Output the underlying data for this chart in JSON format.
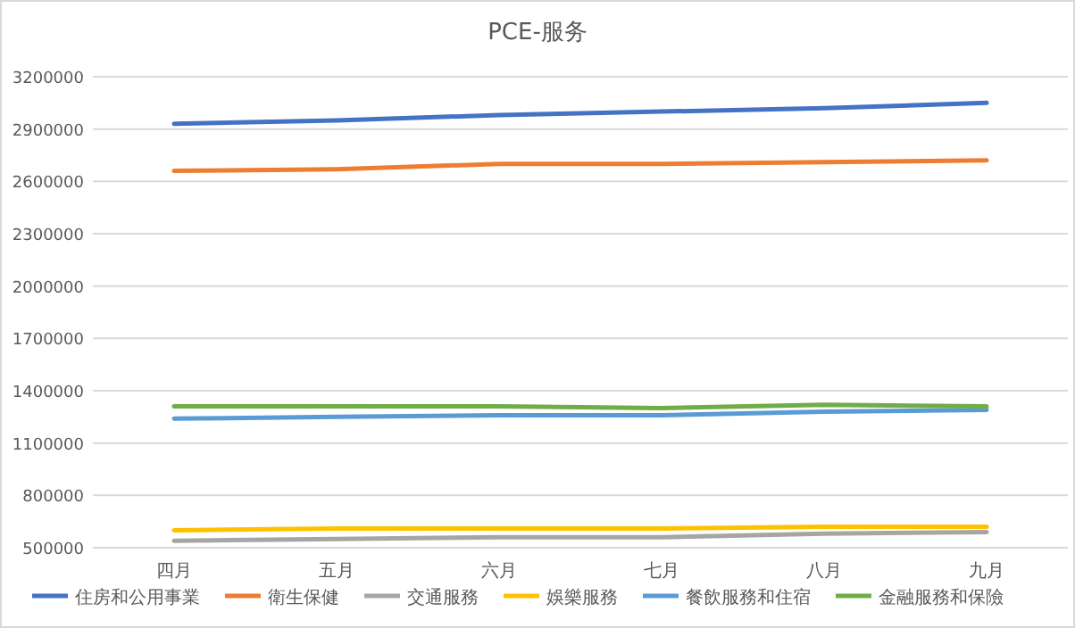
{
  "chart_data": {
    "type": "line",
    "title": "PCE-服务",
    "categories": [
      "四月",
      "五月",
      "六月",
      "七月",
      "八月",
      "九月"
    ],
    "ylim": [
      500000,
      3200000
    ],
    "yticks": [
      500000,
      800000,
      1100000,
      1400000,
      1700000,
      2000000,
      2300000,
      2600000,
      2900000,
      3200000
    ],
    "grid": "y",
    "legend": "bottom",
    "marker": "none",
    "line_style": "solid",
    "series": [
      {
        "name": "住房和公用事業",
        "color": "#4472c4",
        "values": [
          2930000,
          2950000,
          2980000,
          3000000,
          3020000,
          3050000
        ]
      },
      {
        "name": "衛生保健",
        "color": "#ed7d31",
        "values": [
          2660000,
          2670000,
          2700000,
          2700000,
          2710000,
          2720000
        ]
      },
      {
        "name": "交通服務",
        "color": "#a5a5a5",
        "values": [
          540000,
          550000,
          560000,
          560000,
          580000,
          590000
        ]
      },
      {
        "name": "娛樂服務",
        "color": "#ffc000",
        "values": [
          600000,
          610000,
          610000,
          610000,
          620000,
          620000
        ]
      },
      {
        "name": "餐飲服務和住宿",
        "color": "#5b9bd5",
        "values": [
          1240000,
          1250000,
          1260000,
          1260000,
          1280000,
          1290000
        ]
      },
      {
        "name": "金融服務和保險",
        "color": "#70ad47",
        "values": [
          1310000,
          1310000,
          1310000,
          1300000,
          1320000,
          1310000
        ]
      }
    ]
  }
}
